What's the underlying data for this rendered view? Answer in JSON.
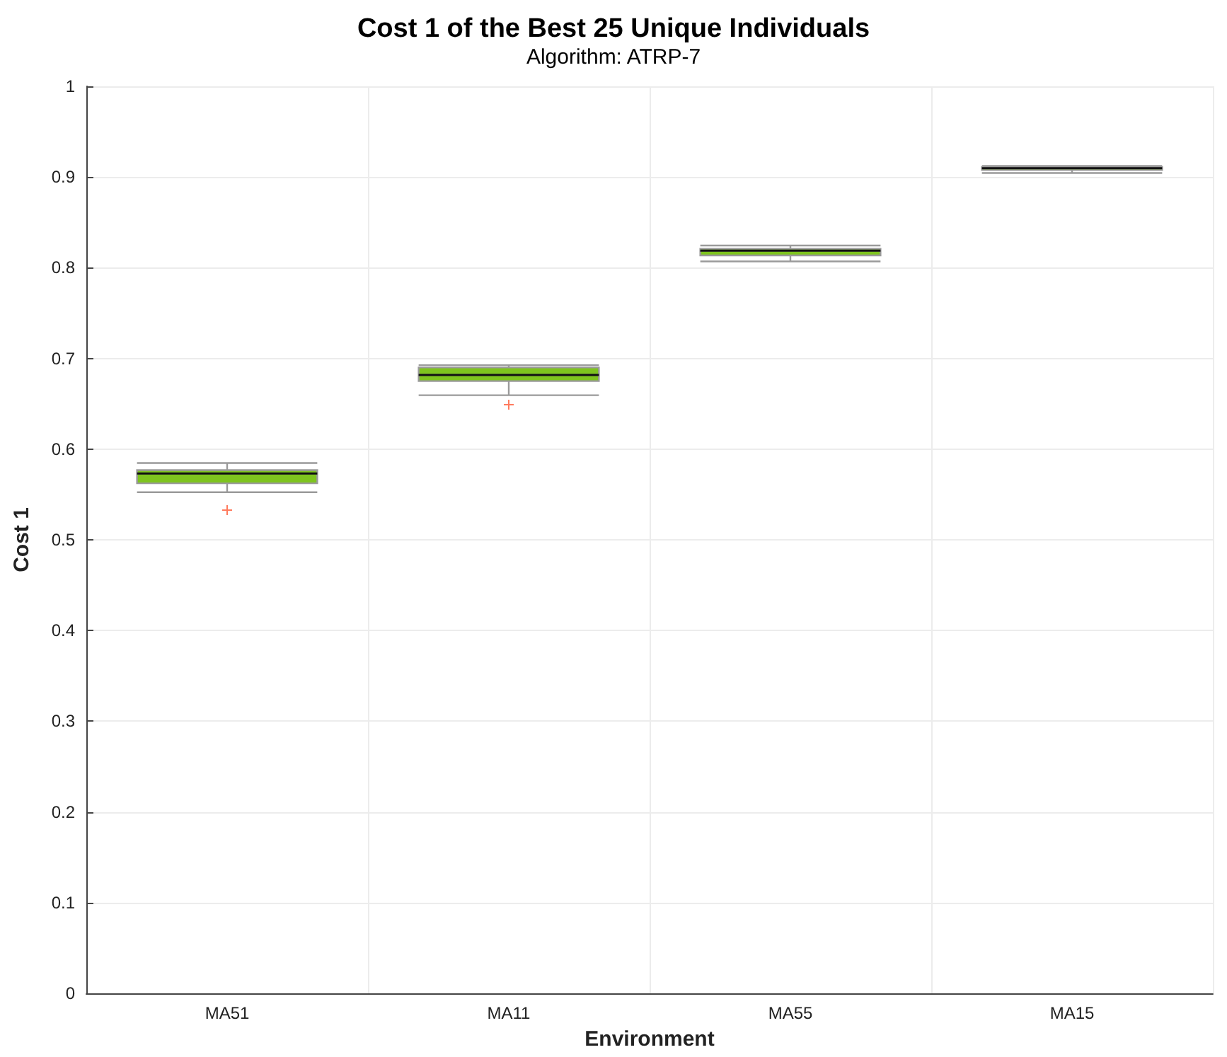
{
  "chart_data": {
    "type": "box",
    "title": "Cost 1 of the Best 25 Unique Individuals",
    "subtitle": "Algorithm: ATRP-7",
    "xlabel": "Environment",
    "ylabel": "Cost 1",
    "categories": [
      "MA51",
      "MA11",
      "MA55",
      "MA15"
    ],
    "boxes": [
      {
        "low": 0.5525,
        "q1": 0.5623,
        "median": 0.5732,
        "q3": 0.5768,
        "high": 0.5846,
        "outliers": [
          0.5327
        ]
      },
      {
        "low": 0.6594,
        "q1": 0.675,
        "median": 0.6818,
        "q3": 0.69,
        "high": 0.6926,
        "outliers": [
          0.649
        ]
      },
      {
        "low": 0.8069,
        "q1": 0.8136,
        "median": 0.8188,
        "q3": 0.8209,
        "high": 0.8245
      },
      {
        "low": 0.9045,
        "q1": 0.9077,
        "median": 0.9097,
        "q3": 0.911,
        "high": 0.9123
      }
    ],
    "color": "#7ec41e",
    "ylim": [
      0,
      1
    ],
    "yticks": [
      0,
      0.1,
      0.2,
      0.3,
      0.4,
      0.5,
      0.6,
      0.7,
      0.8,
      0.9,
      1
    ],
    "grid": true
  }
}
